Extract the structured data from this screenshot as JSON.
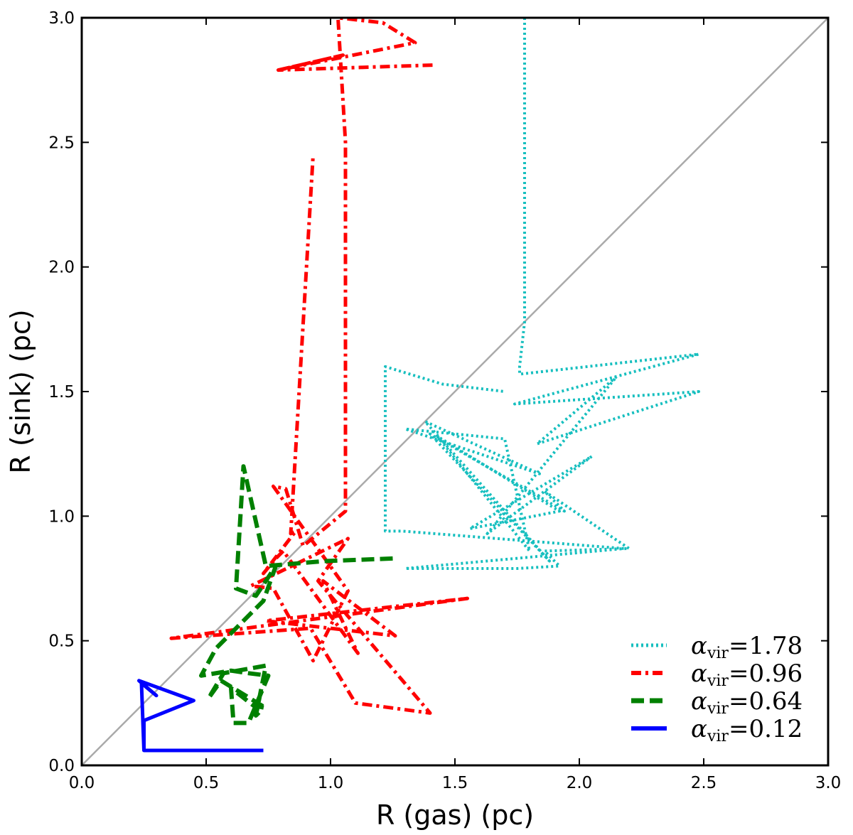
{
  "chart_data": {
    "type": "line",
    "title": "",
    "xlabel": "R (gas) (pc)",
    "ylabel": "R (sink) (pc)",
    "xlim": [
      0,
      3
    ],
    "ylim": [
      0,
      3
    ],
    "xticks": [
      "0.0",
      "0.5",
      "1.0",
      "1.5",
      "2.0",
      "2.5",
      "3.0"
    ],
    "yticks": [
      "0.0",
      "0.5",
      "1.0",
      "1.5",
      "2.0",
      "2.5",
      "3.0"
    ],
    "grid": false,
    "legend_position": "bottom-right",
    "reference_line": {
      "x": [
        0,
        3
      ],
      "y": [
        0,
        3
      ],
      "color": "#aaaaaa"
    },
    "series": [
      {
        "label_math": "α",
        "label_sub": "vir",
        "label_value": "=1.78",
        "color": "#17bfbf",
        "style": "dotted",
        "x": [
          1.78,
          1.78,
          1.76,
          1.76,
          2.48,
          1.74,
          2.48,
          1.83,
          2.15,
          1.63,
          2.05,
          1.56,
          1.92,
          1.43,
          1.8,
          1.7,
          1.3,
          1.84,
          1.38,
          1.88,
          1.4,
          1.94,
          1.86,
          2.2,
          1.86,
          1.92,
          1.75,
          1.3,
          2.18,
          1.29,
          1.29,
          1.22,
          1.22,
          1.22,
          1.22,
          1.45,
          1.7
        ],
        "y": [
          3.0,
          1.78,
          1.6,
          1.57,
          1.65,
          1.45,
          1.5,
          1.29,
          1.56,
          0.93,
          1.24,
          0.95,
          1.02,
          1.32,
          0.86,
          1.31,
          1.35,
          1.17,
          1.38,
          0.82,
          1.33,
          1.02,
          1.1,
          0.87,
          0.86,
          0.8,
          0.79,
          0.79,
          0.87,
          0.94,
          0.94,
          0.94,
          1.25,
          1.6,
          1.6,
          1.53,
          1.5
        ]
      },
      {
        "label_math": "α",
        "label_sub": "vir",
        "label_value": "=0.96",
        "color": "#ff0000",
        "style": "dashdot",
        "x": [
          1.41,
          0.79,
          1.05,
          0.79,
          1.34,
          1.21,
          1.03,
          1.06,
          1.06,
          0.89,
          0.82,
          0.77,
          1.07,
          0.93,
          0.77,
          0.68,
          1.07,
          0.95,
          1.4,
          1.1,
          0.92,
          0.36,
          1.55,
          0.74,
          1.26,
          0.97,
          1.11,
          0.81,
          0.78,
          0.73,
          0.86,
          0.84,
          0.93
        ],
        "y": [
          2.81,
          2.79,
          2.85,
          2.79,
          2.9,
          2.98,
          3.0,
          2.5,
          1.02,
          0.88,
          1.11,
          1.12,
          0.7,
          0.42,
          0.71,
          0.72,
          0.91,
          0.74,
          0.21,
          0.25,
          0.55,
          0.51,
          0.67,
          0.58,
          0.52,
          0.74,
          0.45,
          0.86,
          0.83,
          0.77,
          0.94,
          0.93,
          2.45
        ]
      },
      {
        "label_math": "α",
        "label_sub": "vir",
        "label_value": "=0.64",
        "color": "#008000",
        "style": "dashed",
        "x": [
          1.25,
          0.98,
          0.74,
          0.65,
          0.62,
          0.7,
          0.78,
          0.73,
          0.65,
          0.54,
          0.48,
          0.6,
          0.67,
          0.75,
          0.67,
          0.61,
          0.6,
          0.69,
          0.74,
          0.56,
          0.51,
          0.57,
          0.74,
          0.7,
          0.72
        ],
        "y": [
          0.83,
          0.82,
          0.8,
          1.2,
          0.71,
          0.68,
          0.8,
          0.66,
          0.58,
          0.47,
          0.36,
          0.38,
          0.37,
          0.36,
          0.17,
          0.17,
          0.31,
          0.24,
          0.23,
          0.34,
          0.27,
          0.37,
          0.4,
          0.2,
          0.22
        ]
      },
      {
        "label_math": "α",
        "label_sub": "vir",
        "label_value": "=0.12",
        "color": "#0000ff",
        "style": "solid",
        "x": [
          0.73,
          0.25,
          0.25,
          0.45,
          0.23,
          0.3,
          0.24,
          0.25,
          0.73
        ],
        "y": [
          0.06,
          0.06,
          0.18,
          0.26,
          0.34,
          0.28,
          0.33,
          0.06,
          0.06
        ]
      }
    ]
  }
}
